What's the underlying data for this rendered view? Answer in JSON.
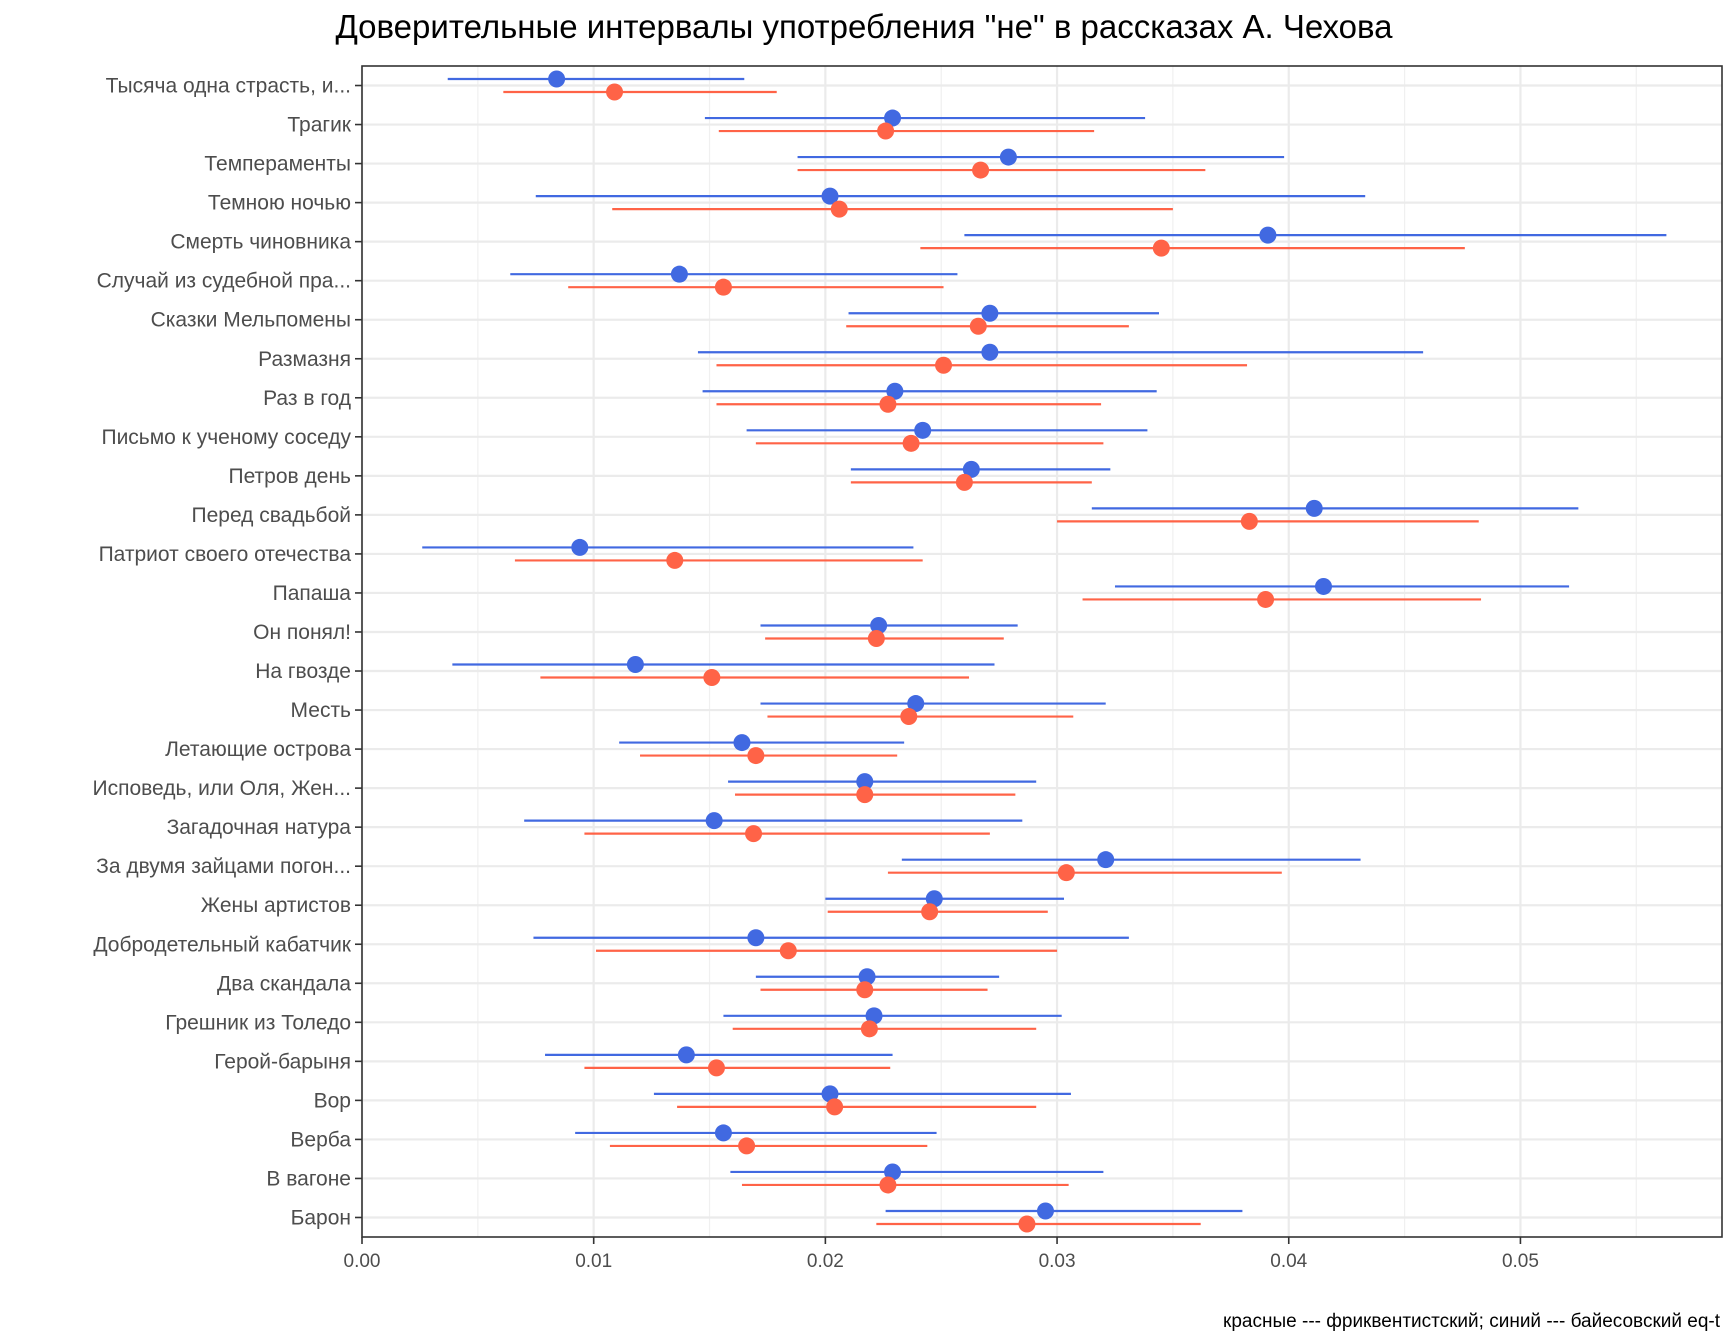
{
  "chart_data": {
    "type": "scatter",
    "title": "Доверительные интервалы употребления \"не\" в рассказах А. Чехова",
    "caption": "красные --- фриквентистский; синий --- байесовский eq-t",
    "xlabel": "",
    "ylabel": "",
    "xlim": [
      0.0,
      0.0587
    ],
    "x_ticks": [
      "0.00",
      "0.01",
      "0.02",
      "0.03",
      "0.04",
      "0.05"
    ],
    "x_tick_values": [
      0.0,
      0.01,
      0.02,
      0.03,
      0.04,
      0.05
    ],
    "grid": true,
    "colors": {
      "bayes": "#4169e1",
      "freq": "#ff6347"
    },
    "categories": [
      "Тысяча одна страсть, и...",
      "Трагик",
      "Темпераменты",
      "Темною ночью",
      "Смерть чиновника",
      "Случай из судебной пра...",
      "Сказки Мельпомены",
      "Размазня",
      "Раз в год",
      "Письмо к ученому соседу",
      "Петров день",
      "Перед свадьбой",
      "Патриот своего отечества",
      "Папаша",
      "Он понял!",
      "На гвозде",
      "Месть",
      "Летающие острова",
      "Исповедь, или Оля, Жен...",
      "Загадочная натура",
      "За двумя зайцами погон...",
      "Жены артистов",
      "Добродетельный кабатчик",
      "Два скандала",
      "Грешник из Толедо",
      "Герой-барыня",
      "Вор",
      "Верба",
      "В вагоне",
      "Барон"
    ],
    "series": [
      {
        "key": "bayes",
        "estimate": [
          0.0084,
          0.0229,
          0.0279,
          0.0202,
          0.0391,
          0.0137,
          0.0271,
          0.0271,
          0.023,
          0.0242,
          0.0263,
          0.0411,
          0.0094,
          0.0415,
          0.0223,
          0.0118,
          0.0239,
          0.0164,
          0.0217,
          0.0152,
          0.0321,
          0.0247,
          0.017,
          0.0218,
          0.0221,
          0.014,
          0.0202,
          0.0156,
          0.0229,
          0.0295
        ],
        "lower": [
          0.0037,
          0.0148,
          0.0188,
          0.0075,
          0.026,
          0.0064,
          0.021,
          0.0145,
          0.0147,
          0.0166,
          0.0211,
          0.0315,
          0.0026,
          0.0325,
          0.0172,
          0.0039,
          0.0172,
          0.0111,
          0.0158,
          0.007,
          0.0233,
          0.02,
          0.0074,
          0.017,
          0.0156,
          0.0079,
          0.0126,
          0.0092,
          0.0159,
          0.0226
        ],
        "upper": [
          0.0165,
          0.0338,
          0.0398,
          0.0433,
          0.0563,
          0.0257,
          0.0344,
          0.0458,
          0.0343,
          0.0339,
          0.0323,
          0.0525,
          0.0238,
          0.0521,
          0.0283,
          0.0273,
          0.0321,
          0.0234,
          0.0291,
          0.0285,
          0.0431,
          0.0303,
          0.0331,
          0.0275,
          0.0302,
          0.0229,
          0.0306,
          0.0248,
          0.032,
          0.038
        ]
      },
      {
        "key": "freq",
        "estimate": [
          0.0109,
          0.0226,
          0.0267,
          0.0206,
          0.0345,
          0.0156,
          0.0266,
          0.0251,
          0.0227,
          0.0237,
          0.026,
          0.0383,
          0.0135,
          0.039,
          0.0222,
          0.0151,
          0.0236,
          0.017,
          0.0217,
          0.0169,
          0.0304,
          0.0245,
          0.0184,
          0.0217,
          0.0219,
          0.0153,
          0.0204,
          0.0166,
          0.0227,
          0.0287
        ],
        "lower": [
          0.0061,
          0.0154,
          0.0188,
          0.0108,
          0.0241,
          0.0089,
          0.0209,
          0.0153,
          0.0153,
          0.017,
          0.0211,
          0.03,
          0.0066,
          0.0311,
          0.0174,
          0.0077,
          0.0175,
          0.012,
          0.0161,
          0.0096,
          0.0227,
          0.0201,
          0.0101,
          0.0172,
          0.016,
          0.0096,
          0.0136,
          0.0107,
          0.0164,
          0.0222
        ],
        "upper": [
          0.0179,
          0.0316,
          0.0364,
          0.035,
          0.0476,
          0.0251,
          0.0331,
          0.0382,
          0.0319,
          0.032,
          0.0315,
          0.0482,
          0.0242,
          0.0483,
          0.0277,
          0.0262,
          0.0307,
          0.0231,
          0.0282,
          0.0271,
          0.0397,
          0.0296,
          0.03,
          0.027,
          0.0291,
          0.0228,
          0.0291,
          0.0244,
          0.0305,
          0.0362
        ]
      }
    ]
  }
}
